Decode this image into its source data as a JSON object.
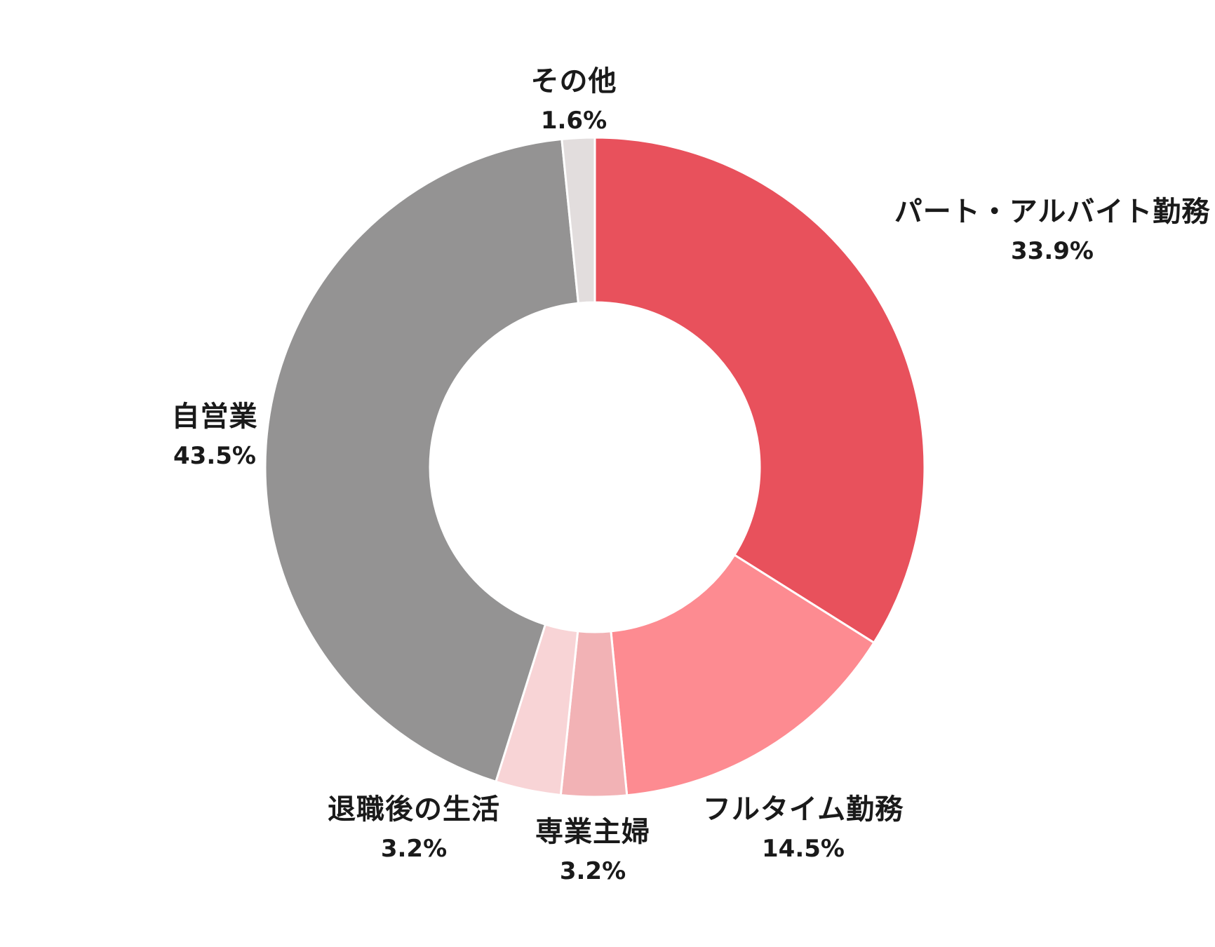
{
  "chart_data": {
    "type": "pie",
    "donut": true,
    "title": "",
    "slices": [
      {
        "label": "パート・アルバイト勤務",
        "value": 33.9,
        "value_label": "33.9%",
        "color": "#e8515c"
      },
      {
        "label": "フルタイム勤務",
        "value": 14.5,
        "value_label": "14.5%",
        "color": "#fd8b91"
      },
      {
        "label": "専業主婦",
        "value": 3.2,
        "value_label": "3.2%",
        "color": "#f2b2b5"
      },
      {
        "label": "退職後の生活",
        "value": 3.2,
        "value_label": "3.2%",
        "color": "#f8d4d6"
      },
      {
        "label": "自営業",
        "value": 43.5,
        "value_label": "43.5%",
        "color": "#949393"
      },
      {
        "label": "その他",
        "value": 1.6,
        "value_label": "1.6%",
        "color": "#e2dddd"
      }
    ],
    "start": "top",
    "direction": "clockwise",
    "legend": "none"
  }
}
